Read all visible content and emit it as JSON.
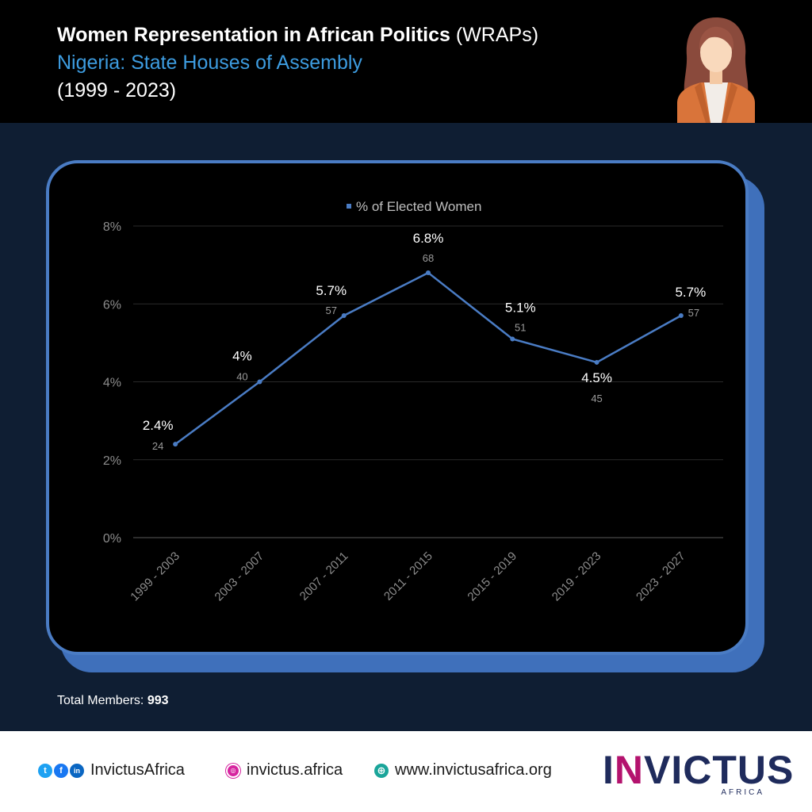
{
  "header": {
    "title_bold": "Women Representation in African Politics",
    "title_abbr": "(WRAPs)",
    "subtitle": "Nigeria: State Houses of Assembly",
    "period": "(1999 - 2023)"
  },
  "chart_data": {
    "type": "line",
    "legend": "% of Elected Women",
    "legend_position": "top-center",
    "categories": [
      "1999 - 2003",
      "2003 - 2007",
      "2007 - 2011",
      "2011 - 2015",
      "2015 - 2019",
      "2019 - 2023",
      "2023 - 2027"
    ],
    "series": [
      {
        "name": "% of Elected Women",
        "values": [
          2.4,
          4,
          5.7,
          6.8,
          5.1,
          4.5,
          5.7
        ],
        "value_labels": [
          "2.4%",
          "4%",
          "5.7%",
          "6.8%",
          "5.1%",
          "4.5%",
          "5.7%"
        ],
        "counts": [
          "24",
          "40",
          "57",
          "68",
          "51",
          "45",
          "57"
        ]
      }
    ],
    "ylim": [
      0,
      8
    ],
    "yticks": [
      0,
      2,
      4,
      6,
      8
    ],
    "ytick_labels": [
      "0%",
      "2%",
      "4%",
      "6%",
      "8%"
    ],
    "grid": true,
    "line_color": "#4a7cc4"
  },
  "total": {
    "label": "Total Members: ",
    "value": "993"
  },
  "footer": {
    "social_handle": "InvictusAfrica",
    "instagram": "invictus.africa",
    "website": "www.invictusafrica.org",
    "logo_text": "INVICTUS",
    "logo_sub": "AFRICA"
  },
  "colors": {
    "background": "#0f1e33",
    "header": "#000000",
    "subtitle": "#3d9ce0",
    "accent_blue": "#4a7cc4",
    "logo_navy": "#1f2b5c",
    "logo_magenta": "#b4136e"
  }
}
